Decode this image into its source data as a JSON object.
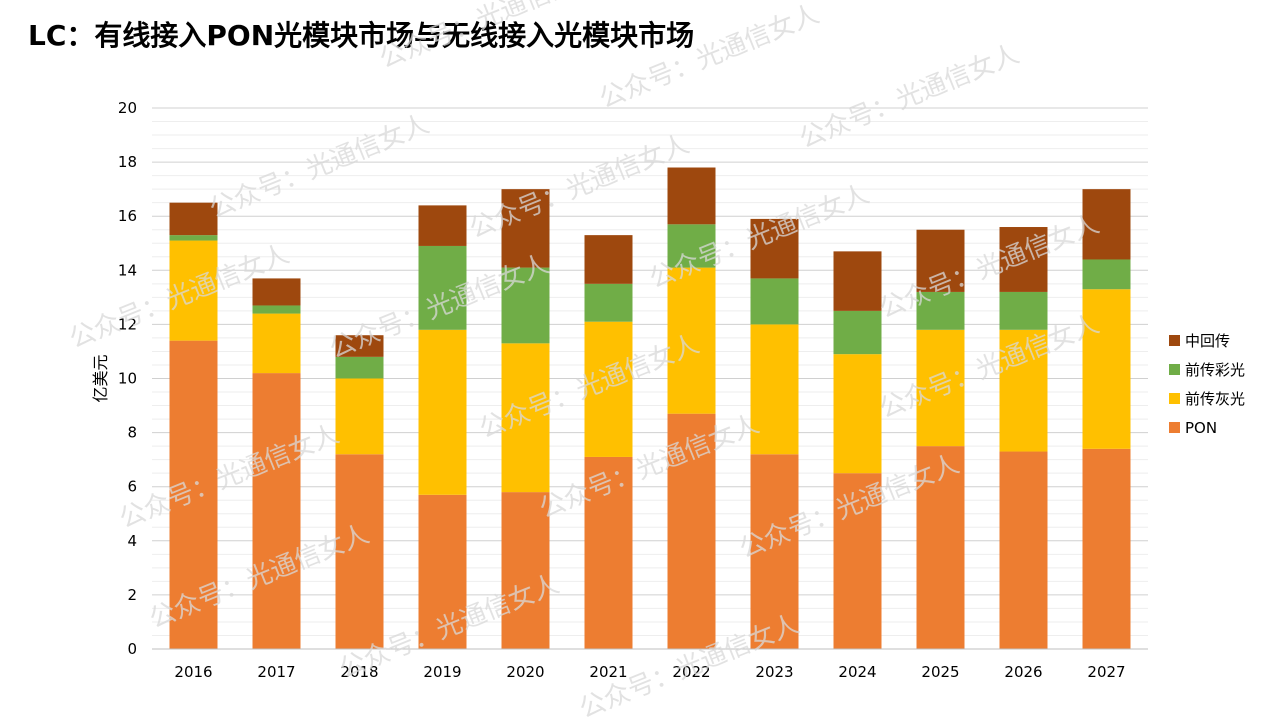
{
  "title": "LC：有线接入PON光模块市场与无线接入光模块市场",
  "watermark": "公众号：光通信女人",
  "colors": {
    "pon": "#ED7D31",
    "gray_fronthaul": "#FFC000",
    "color_fronthaul": "#70AD47",
    "midhaul": "#9E480E",
    "grid": "#d9d9d9",
    "axis_text": "#000000"
  },
  "chart_data": {
    "type": "bar",
    "stacked": true,
    "title": "LC：有线接入PON光模块市场与无线接入光模块市场",
    "xlabel": "",
    "ylabel": "亿美元",
    "ylim": [
      0,
      20
    ],
    "yticks": [
      0,
      2,
      4,
      6,
      8,
      10,
      12,
      14,
      16,
      18,
      20
    ],
    "grid": true,
    "legend_position": "right",
    "categories": [
      "2016",
      "2017",
      "2018",
      "2019",
      "2020",
      "2021",
      "2022",
      "2023",
      "2024",
      "2025",
      "2026",
      "2027"
    ],
    "series": [
      {
        "name": "PON",
        "color": "#ED7D31",
        "values": [
          11.4,
          10.2,
          7.2,
          5.7,
          5.8,
          7.1,
          8.7,
          7.2,
          6.5,
          7.5,
          7.3,
          7.4
        ]
      },
      {
        "name": "前传灰光",
        "color": "#FFC000",
        "values": [
          3.7,
          2.2,
          2.8,
          6.1,
          5.5,
          5.0,
          5.4,
          4.8,
          4.4,
          4.3,
          4.5,
          5.9
        ]
      },
      {
        "name": "前传彩光",
        "color": "#70AD47",
        "values": [
          0.2,
          0.3,
          0.8,
          3.1,
          2.8,
          1.4,
          1.6,
          1.7,
          1.6,
          1.4,
          1.4,
          1.1
        ]
      },
      {
        "name": "中回传",
        "color": "#9E480E",
        "values": [
          1.2,
          1.0,
          0.8,
          1.5,
          2.9,
          1.8,
          2.1,
          2.2,
          2.2,
          2.3,
          2.4,
          2.6
        ]
      }
    ],
    "legend_order": [
      "中回传",
      "前传彩光",
      "前传灰光",
      "PON"
    ]
  }
}
